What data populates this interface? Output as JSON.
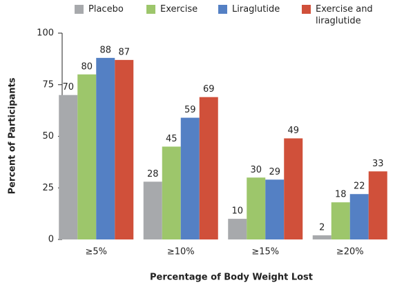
{
  "chart_data": {
    "type": "bar",
    "x_label": "Percentage of Body Weight Lost",
    "y_label": "Percent of Participants",
    "categories": [
      "≥5%",
      "≥10%",
      "≥15%",
      "≥20%"
    ],
    "series": [
      {
        "name": "Placebo",
        "color": "#a7a9ac",
        "values": [
          70,
          28,
          10,
          2
        ]
      },
      {
        "name": "Exercise",
        "color": "#9dc66b",
        "values": [
          80,
          45,
          30,
          18
        ]
      },
      {
        "name": "Liraglutide",
        "color": "#5480c4",
        "values": [
          88,
          59,
          29,
          22
        ]
      },
      {
        "name": "Exercise and liraglutide",
        "color": "#d0503a",
        "values": [
          87,
          69,
          49,
          33
        ]
      }
    ],
    "ylim": [
      0,
      100
    ],
    "yticks": [
      0,
      25,
      50,
      75,
      100
    ],
    "grid": false
  }
}
